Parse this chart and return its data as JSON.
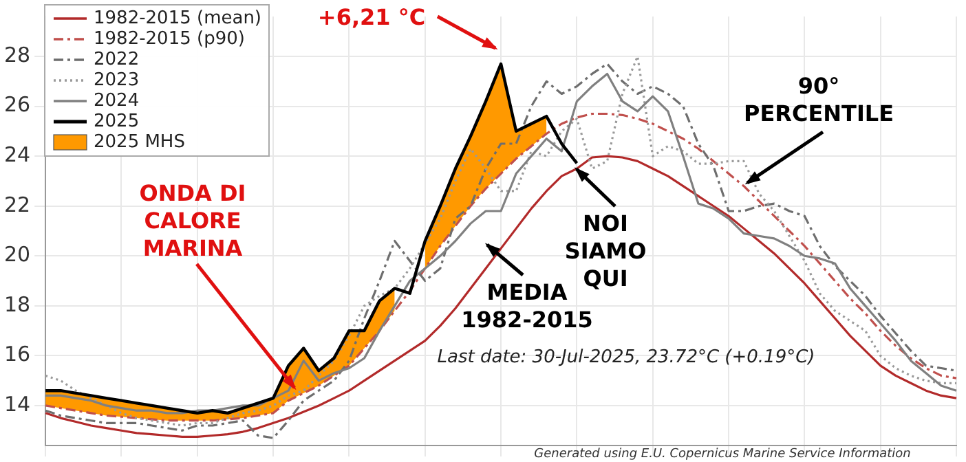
{
  "chart_data": {
    "type": "line",
    "legend": "top left",
    "grid": true,
    "marker": "none",
    "ylim": [
      12.4,
      29.6
    ],
    "yticks": [
      14,
      16,
      18,
      20,
      22,
      24,
      26,
      28
    ],
    "categories": [
      null,
      null,
      null,
      null,
      null,
      null,
      null,
      null,
      null,
      null,
      null,
      null,
      null,
      null,
      null,
      null,
      null,
      null,
      null,
      null,
      null,
      null,
      null,
      null,
      null,
      null,
      null,
      null,
      null,
      null,
      null,
      null,
      null,
      null,
      null,
      null,
      null,
      null,
      null,
      null,
      null,
      null,
      null,
      null,
      null,
      null,
      null,
      null,
      null,
      null,
      null,
      null,
      null,
      null,
      null,
      null,
      null,
      null,
      null,
      null,
      null
    ],
    "annotations": [
      "ONDA DI\nCALORE\nMARINA",
      "+6,21 °C",
      "NOI\nSIAMO\nQUI",
      "MEDIA\n1982-2015",
      "90°\nPERCENTILE",
      "Last date: 30-Jul-2025, 23.72°C (+0.19°C)",
      "Generated using E.U. Copernicus Marine Service Information"
    ],
    "series": [
      {
        "name": "1982-2015 (mean)",
        "color": "#b22a2a",
        "line_style": "solid",
        "values": [
          13.7,
          13.5,
          13.35,
          13.2,
          13.1,
          13.0,
          12.9,
          12.85,
          12.8,
          12.75,
          12.75,
          12.8,
          12.85,
          12.95,
          13.1,
          13.3,
          13.5,
          13.75,
          14.0,
          14.3,
          14.6,
          15.0,
          15.4,
          15.8,
          16.2,
          16.6,
          17.2,
          17.9,
          18.7,
          19.5,
          20.3,
          21.1,
          21.9,
          22.6,
          23.2,
          23.5,
          23.95,
          24.0,
          23.95,
          23.8,
          23.5,
          23.2,
          22.8,
          22.4,
          22.0,
          21.6,
          21.1,
          20.6,
          20.1,
          19.5,
          18.9,
          18.2,
          17.5,
          16.8,
          16.2,
          15.6,
          15.2,
          14.9,
          14.6,
          14.4,
          14.3
        ]
      },
      {
        "name": "1982-2015 (p90)",
        "color": "#c0504d",
        "line_style": "dashed",
        "values": [
          14.0,
          13.9,
          13.8,
          13.7,
          13.6,
          13.55,
          13.5,
          13.45,
          13.4,
          13.4,
          13.4,
          13.4,
          13.45,
          13.5,
          13.6,
          13.7,
          14.2,
          14.5,
          14.8,
          15.2,
          15.6,
          16.3,
          17.0,
          17.8,
          18.6,
          19.5,
          20.4,
          21.2,
          22.0,
          22.7,
          23.3,
          23.9,
          24.4,
          24.9,
          25.3,
          25.55,
          25.7,
          25.7,
          25.65,
          25.5,
          25.3,
          25.0,
          24.7,
          24.3,
          23.8,
          23.3,
          22.8,
          22.2,
          21.6,
          21.0,
          20.4,
          19.7,
          19.0,
          18.3,
          17.7,
          17.0,
          16.4,
          15.9,
          15.5,
          15.2,
          15.1
        ]
      },
      {
        "name": "2022",
        "color": "#6e6e6e",
        "line_style": "dashed",
        "values": [
          13.8,
          13.6,
          13.5,
          13.4,
          13.3,
          13.3,
          13.3,
          13.2,
          13.1,
          13.0,
          13.2,
          13.2,
          13.3,
          13.4,
          12.8,
          12.7,
          13.4,
          14.2,
          14.6,
          15.0,
          15.8,
          17.5,
          19.0,
          20.6,
          19.8,
          19.0,
          19.5,
          21.5,
          22.0,
          23.5,
          24.5,
          24.5,
          26.0,
          27.0,
          26.5,
          26.8,
          27.3,
          27.7,
          27.0,
          26.5,
          26.8,
          26.5,
          26.0,
          24.5,
          23.6,
          21.8,
          21.8,
          22.0,
          22.1,
          21.8,
          21.6,
          20.4,
          19.6,
          19.0,
          18.4,
          17.6,
          16.9,
          16.2,
          15.6,
          15.5,
          15.4
        ]
      },
      {
        "name": "2023",
        "color": "#9a9a9a",
        "line_style": "dotted",
        "values": [
          15.2,
          15.0,
          14.6,
          14.3,
          14.0,
          13.7,
          13.5,
          13.4,
          13.3,
          13.2,
          13.3,
          13.3,
          13.5,
          13.7,
          13.8,
          14.0,
          14.4,
          14.6,
          15.2,
          15.8,
          16.8,
          18.0,
          18.4,
          18.7,
          19.5,
          20.5,
          21.5,
          23.0,
          24.3,
          23.5,
          22.6,
          22.6,
          24.2,
          24.0,
          25.0,
          25.5,
          23.5,
          23.8,
          26.5,
          28.0,
          24.0,
          24.4,
          24.2,
          23.7,
          23.7,
          23.8,
          23.8,
          22.5,
          21.8,
          20.8,
          19.8,
          18.5,
          17.8,
          17.4,
          17.0,
          16.0,
          15.5,
          15.2,
          15.0,
          14.9,
          14.9
        ]
      },
      {
        "name": "2024",
        "color": "#808080",
        "line_style": "solid",
        "values": [
          14.4,
          14.4,
          14.3,
          14.2,
          14.0,
          13.9,
          13.8,
          13.8,
          13.7,
          13.7,
          13.8,
          13.8,
          13.9,
          14.0,
          14.0,
          14.3,
          14.6,
          15.8,
          15.0,
          15.3,
          15.5,
          15.9,
          17.0,
          18.0,
          19.0,
          19.5,
          20.0,
          20.6,
          21.3,
          21.8,
          21.8,
          23.3,
          24.0,
          24.7,
          24.2,
          26.2,
          26.8,
          27.3,
          26.2,
          25.8,
          26.4,
          25.8,
          24.0,
          22.1,
          21.9,
          21.5,
          20.9,
          20.8,
          20.7,
          20.4,
          20.0,
          19.9,
          19.7,
          18.7,
          18.0,
          17.3,
          16.6,
          15.8,
          15.3,
          14.8,
          14.6
        ]
      },
      {
        "name": "2025",
        "color": "#000000",
        "line_style": "solid",
        "values": [
          14.6,
          14.6,
          14.5,
          14.4,
          14.3,
          14.2,
          14.1,
          14.0,
          13.9,
          13.8,
          13.7,
          13.8,
          13.7,
          13.9,
          14.1,
          14.3,
          15.6,
          16.3,
          15.4,
          15.9,
          17.0,
          17.0,
          18.2,
          18.7,
          18.5,
          20.6,
          22.0,
          23.5,
          24.8,
          26.2,
          27.7,
          25.0,
          25.3,
          25.6,
          24.5,
          23.72,
          null,
          null,
          null,
          null,
          null,
          null,
          null,
          null,
          null,
          null,
          null,
          null,
          null,
          null,
          null,
          null,
          null,
          null,
          null,
          null,
          null,
          null,
          null,
          null,
          null
        ]
      },
      {
        "name": "2025 MHS",
        "type": "area",
        "color": "#ff9900",
        "values": [
          14.6,
          14.6,
          14.5,
          14.4,
          14.3,
          14.2,
          14.1,
          14.0,
          13.9,
          13.8,
          13.7,
          13.8,
          13.7,
          13.9,
          14.1,
          14.3,
          15.6,
          16.3,
          15.4,
          15.9,
          17.0,
          17.0,
          18.2,
          18.7,
          null,
          20.6,
          22.0,
          23.5,
          24.8,
          26.2,
          27.7,
          25.0,
          25.3,
          25.6,
          null,
          null,
          null,
          null,
          null,
          null,
          null,
          null,
          null,
          null,
          null,
          null,
          null,
          null,
          null,
          null,
          null,
          null,
          null,
          null,
          null,
          null,
          null,
          null,
          null,
          null,
          null
        ]
      }
    ]
  }
}
